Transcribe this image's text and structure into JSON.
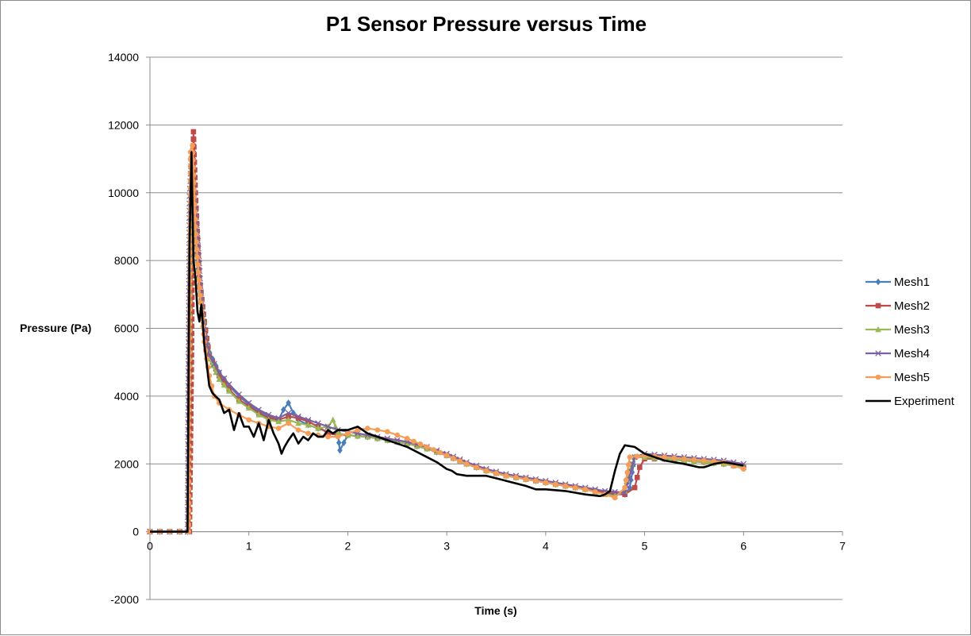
{
  "chart_data": {
    "type": "line",
    "title": "P1 Sensor Pressure versus Time",
    "xlabel": "Time (s)",
    "ylabel": "Pressure (Pa)",
    "xlim": [
      0,
      7
    ],
    "ylim": [
      -2000,
      14000
    ],
    "xticks": [
      0,
      1,
      2,
      3,
      4,
      5,
      6,
      7
    ],
    "yticks": [
      -2000,
      0,
      2000,
      4000,
      6000,
      8000,
      10000,
      12000,
      14000
    ],
    "grid": "horizontal",
    "legend_position": "right",
    "series": [
      {
        "name": "Mesh1",
        "color": "#4a7ebb",
        "marker": "diamond",
        "x": [
          0,
          0.1,
          0.2,
          0.3,
          0.38,
          0.4,
          0.43,
          0.45,
          0.48,
          0.5,
          0.55,
          0.6,
          0.7,
          0.8,
          0.9,
          1.0,
          1.1,
          1.2,
          1.3,
          1.35,
          1.4,
          1.45,
          1.5,
          1.6,
          1.7,
          1.8,
          1.9,
          1.92,
          2.0,
          2.2,
          2.4,
          2.6,
          2.8,
          3.0,
          3.2,
          3.4,
          3.6,
          3.8,
          4.0,
          4.2,
          4.4,
          4.6,
          4.7,
          4.8,
          4.85,
          4.9,
          5.0,
          5.2,
          5.4,
          5.6,
          5.8,
          6.0
        ],
        "y": [
          0,
          0,
          0,
          0,
          0,
          8000,
          11300,
          9700,
          8000,
          7000,
          6000,
          5300,
          4700,
          4300,
          4000,
          3750,
          3550,
          3400,
          3300,
          3600,
          3800,
          3500,
          3300,
          3150,
          3050,
          2950,
          2850,
          2400,
          2850,
          2800,
          2700,
          2600,
          2450,
          2250,
          2000,
          1800,
          1650,
          1550,
          1450,
          1350,
          1250,
          1150,
          1100,
          1100,
          1300,
          2200,
          2200,
          2150,
          2100,
          2050,
          2000,
          1900
        ]
      },
      {
        "name": "Mesh2",
        "color": "#be4b48",
        "marker": "square",
        "x": [
          0,
          0.1,
          0.2,
          0.3,
          0.4,
          0.42,
          0.44,
          0.46,
          0.5,
          0.55,
          0.6,
          0.7,
          0.8,
          0.9,
          1.0,
          1.1,
          1.2,
          1.3,
          1.4,
          1.5,
          1.6,
          1.7,
          1.8,
          1.9,
          2.0,
          2.2,
          2.4,
          2.6,
          2.8,
          3.0,
          3.2,
          3.4,
          3.6,
          3.8,
          4.0,
          4.2,
          4.4,
          4.6,
          4.8,
          4.9,
          4.95,
          5.0,
          5.2,
          5.4,
          5.6,
          5.8,
          6.0
        ],
        "y": [
          0,
          0,
          0,
          0,
          0,
          5000,
          11800,
          10000,
          7500,
          6200,
          5200,
          4600,
          4200,
          3900,
          3700,
          3500,
          3350,
          3300,
          3400,
          3350,
          3250,
          3100,
          2900,
          2850,
          2850,
          2800,
          2700,
          2600,
          2450,
          2250,
          2000,
          1800,
          1650,
          1550,
          1450,
          1350,
          1250,
          1150,
          1100,
          1300,
          1900,
          2150,
          2150,
          2100,
          2050,
          2000,
          1900
        ]
      },
      {
        "name": "Mesh3",
        "color": "#98b954",
        "marker": "triangle",
        "x": [
          0,
          0.1,
          0.2,
          0.3,
          0.39,
          0.41,
          0.43,
          0.45,
          0.5,
          0.55,
          0.6,
          0.7,
          0.8,
          0.9,
          1.0,
          1.1,
          1.2,
          1.3,
          1.4,
          1.5,
          1.6,
          1.7,
          1.8,
          1.85,
          1.9,
          2.0,
          2.2,
          2.4,
          2.6,
          2.8,
          3.0,
          3.2,
          3.4,
          3.6,
          3.8,
          4.0,
          4.2,
          4.4,
          4.6,
          4.7,
          4.8,
          4.85,
          4.9,
          5.0,
          5.2,
          5.4,
          5.6,
          5.8,
          6.0
        ],
        "y": [
          0,
          0,
          0,
          0,
          0,
          9000,
          11000,
          9600,
          7300,
          6000,
          5100,
          4500,
          4150,
          3850,
          3650,
          3450,
          3300,
          3250,
          3300,
          3200,
          3150,
          3050,
          3100,
          3300,
          2900,
          2850,
          2800,
          2700,
          2600,
          2450,
          2250,
          2000,
          1800,
          1650,
          1550,
          1450,
          1350,
          1250,
          1100,
          1050,
          1200,
          1800,
          2200,
          2200,
          2150,
          2100,
          2050,
          2000,
          1900
        ]
      },
      {
        "name": "Mesh4",
        "color": "#7d60a0",
        "marker": "x",
        "x": [
          0,
          0.1,
          0.2,
          0.3,
          0.38,
          0.4,
          0.42,
          0.45,
          0.48,
          0.52,
          0.56,
          0.6,
          0.7,
          0.8,
          0.9,
          1.0,
          1.1,
          1.2,
          1.3,
          1.4,
          1.5,
          1.6,
          1.7,
          1.8,
          1.9,
          2.0,
          2.2,
          2.4,
          2.6,
          2.8,
          3.0,
          3.2,
          3.4,
          3.6,
          3.8,
          4.0,
          4.2,
          4.4,
          4.6,
          4.8,
          4.9,
          5.0,
          5.2,
          5.4,
          5.6,
          5.8,
          6.0
        ],
        "y": [
          0,
          0,
          0,
          0,
          0,
          9900,
          11000,
          10000,
          8800,
          6800,
          5800,
          5200,
          4700,
          4350,
          4050,
          3800,
          3600,
          3450,
          3350,
          3500,
          3400,
          3300,
          3200,
          3100,
          3000,
          2950,
          2850,
          2750,
          2650,
          2500,
          2300,
          2050,
          1850,
          1700,
          1600,
          1500,
          1400,
          1300,
          1200,
          1150,
          2200,
          2300,
          2250,
          2200,
          2150,
          2100,
          2000
        ]
      },
      {
        "name": "Mesh5",
        "color": "#f59d56",
        "marker": "circle",
        "x": [
          0,
          0.1,
          0.2,
          0.3,
          0.39,
          0.41,
          0.43,
          0.46,
          0.5,
          0.55,
          0.6,
          0.65,
          0.7,
          0.8,
          0.9,
          1.0,
          1.1,
          1.2,
          1.3,
          1.4,
          1.5,
          1.6,
          1.7,
          1.8,
          1.9,
          2.0,
          2.1,
          2.2,
          2.4,
          2.6,
          2.8,
          3.0,
          3.2,
          3.4,
          3.6,
          3.8,
          4.0,
          4.2,
          4.4,
          4.6,
          4.7,
          4.8,
          4.85,
          5.0,
          5.2,
          5.4,
          5.6,
          5.8,
          6.0
        ],
        "y": [
          0,
          0,
          0,
          0,
          0,
          11200,
          11400,
          9000,
          7200,
          5600,
          4600,
          4000,
          3800,
          3600,
          3450,
          3300,
          3200,
          3100,
          3050,
          3200,
          3000,
          2900,
          2850,
          2800,
          2800,
          2900,
          3000,
          3050,
          2950,
          2750,
          2500,
          2250,
          2000,
          1800,
          1650,
          1550,
          1450,
          1350,
          1250,
          1100,
          1000,
          1300,
          2200,
          2250,
          2200,
          2150,
          2100,
          2050,
          1850
        ]
      },
      {
        "name": "Experiment",
        "color": "#000000",
        "marker": "none",
        "x": [
          0,
          0.2,
          0.38,
          0.4,
          0.42,
          0.44,
          0.46,
          0.48,
          0.5,
          0.52,
          0.55,
          0.58,
          0.6,
          0.63,
          0.66,
          0.7,
          0.75,
          0.8,
          0.85,
          0.9,
          0.95,
          1.0,
          1.05,
          1.1,
          1.15,
          1.2,
          1.25,
          1.3,
          1.33,
          1.36,
          1.4,
          1.45,
          1.5,
          1.55,
          1.6,
          1.65,
          1.7,
          1.75,
          1.8,
          1.85,
          1.9,
          2.0,
          2.1,
          2.2,
          2.4,
          2.6,
          2.8,
          2.9,
          3.0,
          3.05,
          3.1,
          3.2,
          3.4,
          3.6,
          3.8,
          3.9,
          4.0,
          4.2,
          4.4,
          4.55,
          4.6,
          4.65,
          4.7,
          4.75,
          4.8,
          4.9,
          5.0,
          5.2,
          5.4,
          5.55,
          5.6,
          5.7,
          5.8,
          6.0
        ],
        "y": [
          0,
          0,
          0,
          8500,
          11200,
          8000,
          7500,
          6500,
          6200,
          6700,
          5500,
          4800,
          4300,
          4100,
          4000,
          3900,
          3500,
          3600,
          3000,
          3500,
          3100,
          3100,
          2800,
          3200,
          2700,
          3300,
          2900,
          2600,
          2300,
          2500,
          2700,
          2900,
          2600,
          2800,
          2700,
          2900,
          2800,
          2800,
          3000,
          2900,
          3000,
          3000,
          3100,
          2900,
          2700,
          2500,
          2200,
          2050,
          1850,
          1800,
          1700,
          1650,
          1650,
          1500,
          1350,
          1250,
          1250,
          1200,
          1100,
          1050,
          1100,
          1200,
          1800,
          2300,
          2550,
          2500,
          2300,
          2100,
          2000,
          1900,
          1900,
          2000,
          2050,
          1950
        ]
      }
    ]
  }
}
